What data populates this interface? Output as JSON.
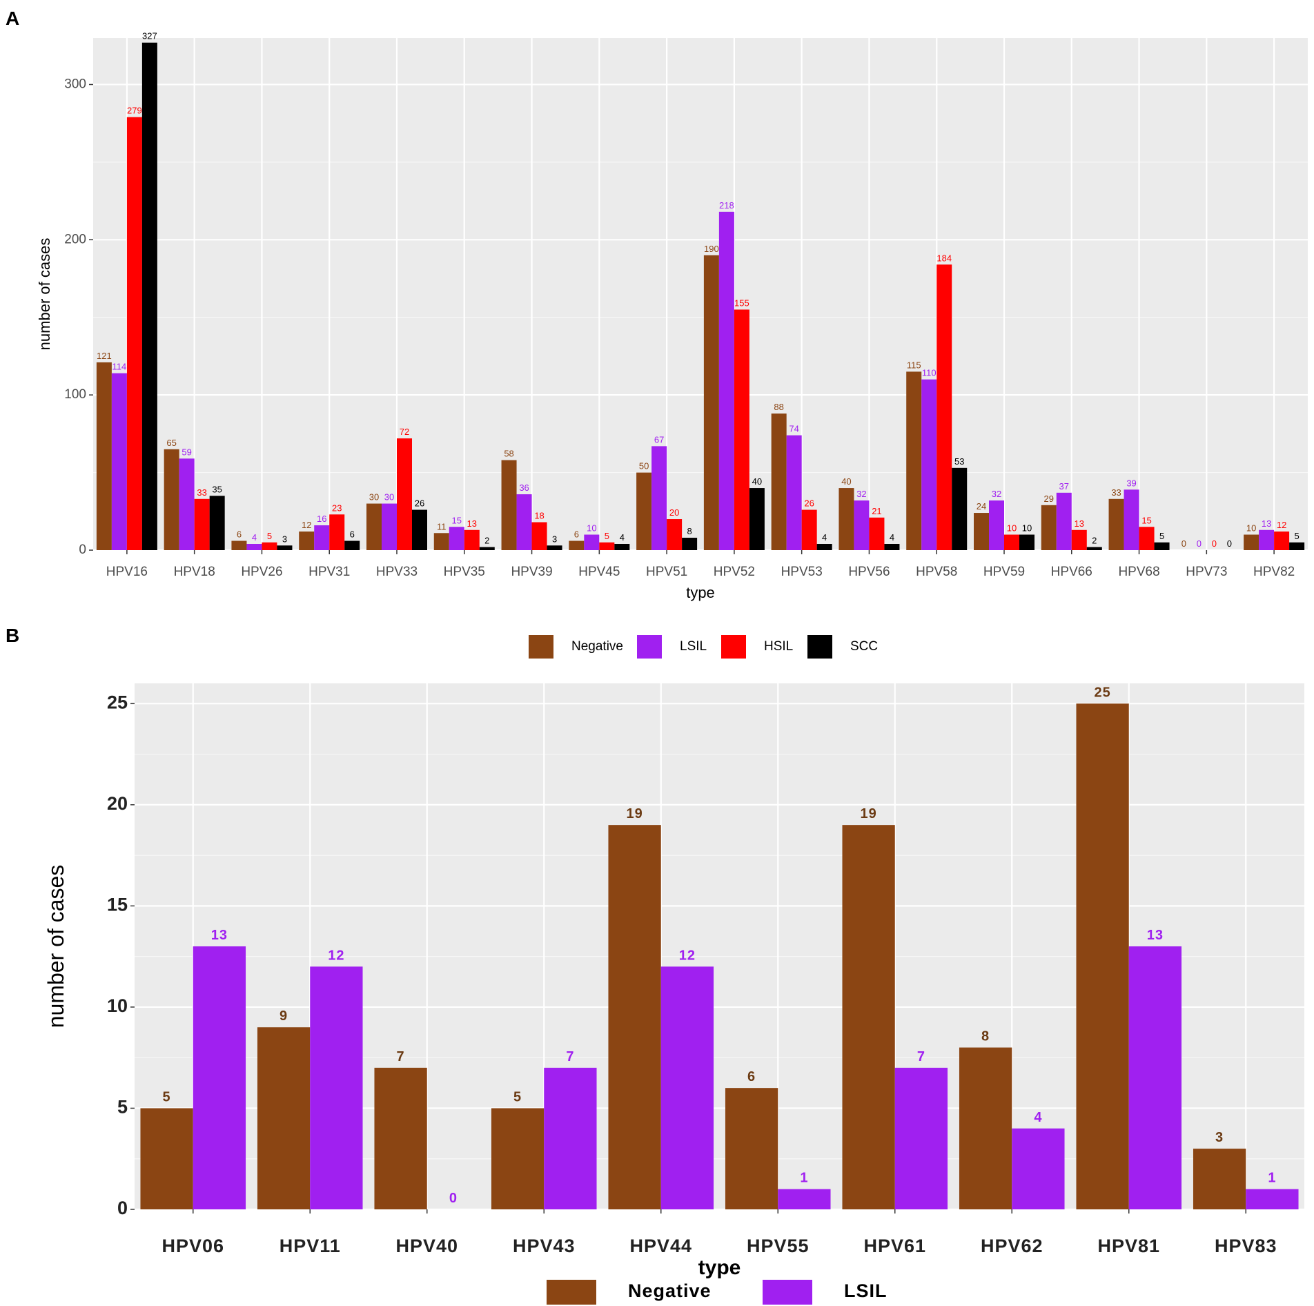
{
  "chart_data": [
    {
      "panel": "A",
      "type": "bar",
      "title": "",
      "xlabel": "type",
      "ylabel": "number  of  cases",
      "ylim": [
        0,
        330
      ],
      "yticks": [
        0,
        100,
        200,
        300
      ],
      "grid": true,
      "legend_position": "bottom",
      "categories": [
        "HPV16",
        "HPV18",
        "HPV26",
        "HPV31",
        "HPV33",
        "HPV35",
        "HPV39",
        "HPV45",
        "HPV51",
        "HPV52",
        "HPV53",
        "HPV56",
        "HPV58",
        "HPV59",
        "HPV66",
        "HPV68",
        "HPV73",
        "HPV82"
      ],
      "series": [
        {
          "name": "Negative",
          "color": "#8B4513",
          "values": [
            121,
            65,
            6,
            12,
            30,
            11,
            58,
            6,
            50,
            190,
            88,
            40,
            115,
            24,
            29,
            33,
            0,
            10
          ]
        },
        {
          "name": "LSIL",
          "color": "#A020F0",
          "values": [
            114,
            59,
            4,
            16,
            30,
            15,
            36,
            10,
            67,
            218,
            74,
            32,
            110,
            32,
            37,
            39,
            0,
            13
          ]
        },
        {
          "name": "HSIL",
          "color": "#FF0000",
          "values": [
            279,
            33,
            5,
            23,
            72,
            13,
            18,
            5,
            20,
            155,
            26,
            21,
            184,
            10,
            13,
            15,
            0,
            12
          ]
        },
        {
          "name": "SCC",
          "color": "#000000",
          "values": [
            327,
            35,
            3,
            6,
            26,
            2,
            3,
            4,
            8,
            40,
            4,
            4,
            53,
            10,
            2,
            5,
            0,
            5
          ]
        }
      ]
    },
    {
      "panel": "B",
      "type": "bar",
      "title": "",
      "xlabel": "type",
      "ylabel": "number of cases",
      "ylim": [
        0,
        26
      ],
      "yticks": [
        0,
        5,
        10,
        15,
        20,
        25
      ],
      "grid": true,
      "legend_position": "bottom",
      "categories": [
        "HPV06",
        "HPV11",
        "HPV40",
        "HPV43",
        "HPV44",
        "HPV55",
        "HPV61",
        "HPV62",
        "HPV81",
        "HPV83"
      ],
      "series": [
        {
          "name": "Negative",
          "color": "#8B4513",
          "values": [
            5,
            9,
            7,
            5,
            19,
            6,
            19,
            8,
            25,
            3
          ]
        },
        {
          "name": "LSIL",
          "color": "#A020F0",
          "values": [
            13,
            12,
            0,
            7,
            12,
            1,
            7,
            4,
            13,
            1
          ]
        }
      ]
    }
  ],
  "colors": {
    "panel_bg": "#EBEBEB",
    "grid": "#FFFFFF",
    "negative_label_a": "#8B4513",
    "negative_label_b": "#6B3A12"
  }
}
